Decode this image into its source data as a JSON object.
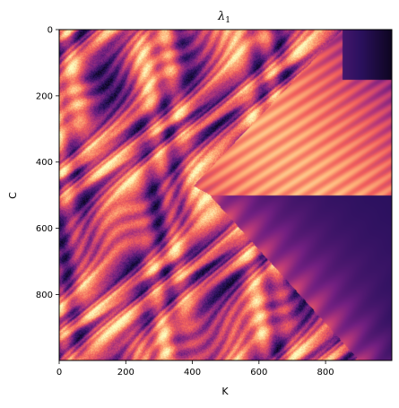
{
  "chart_data": {
    "type": "heatmap",
    "title_symbol": "λ",
    "title_subscript": "1",
    "xlabel": "K",
    "ylabel": "C",
    "xlim": [
      0,
      999
    ],
    "ylim": [
      999,
      0
    ],
    "xticks": [
      0,
      200,
      400,
      600,
      800
    ],
    "yticks": [
      0,
      200,
      400,
      600,
      800
    ],
    "colormap": "magma",
    "colormap_stops": [
      "#000004",
      "#2c115f",
      "#721f81",
      "#b73779",
      "#f1605d",
      "#feb078",
      "#fcfdbf"
    ],
    "description_note": ""
  }
}
